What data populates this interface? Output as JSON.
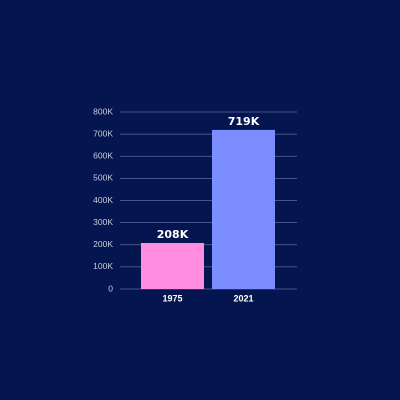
{
  "chart_data": {
    "type": "bar",
    "categories": [
      "1975",
      "2021"
    ],
    "values": [
      208000,
      719000
    ],
    "value_labels": [
      "208K",
      "719K"
    ],
    "colors": [
      "#ff8de0",
      "#7b8dff"
    ],
    "ylim": [
      0,
      800000
    ],
    "yticks": [
      0,
      {
        "value": 100000,
        "label": "100K"
      },
      {
        "value": 200000,
        "label": "200K"
      },
      {
        "value": 300000,
        "label": "300K"
      },
      {
        "value": 400000,
        "label": "400K"
      },
      {
        "value": 500000,
        "label": "500K"
      },
      {
        "value": 600000,
        "label": "600K"
      },
      {
        "value": 700000,
        "label": "700K"
      },
      {
        "value": 800000,
        "label": "800K"
      }
    ],
    "grid": true
  }
}
